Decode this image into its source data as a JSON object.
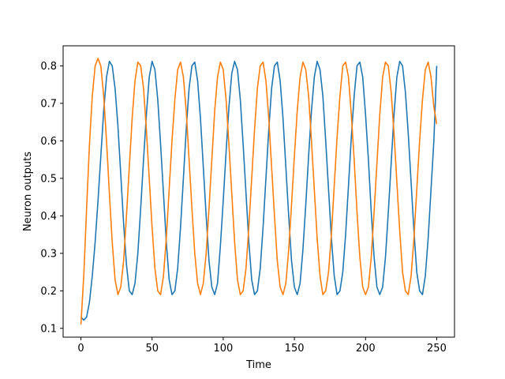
{
  "chart_data": {
    "type": "line",
    "title": "",
    "xlabel": "Time",
    "ylabel": "Neuron outputs",
    "xlim": [
      -12.5,
      262.5
    ],
    "ylim": [
      0.0765,
      0.8535
    ],
    "x_ticks": [
      0,
      50,
      100,
      150,
      200,
      250
    ],
    "y_ticks": [
      0.1,
      0.2,
      0.3,
      0.4,
      0.5,
      0.6,
      0.7,
      0.8
    ],
    "x_tick_labels": [
      "0",
      "50",
      "100",
      "150",
      "200",
      "250"
    ],
    "y_tick_labels": [
      "0.1",
      "0.2",
      "0.3",
      "0.4",
      "0.5",
      "0.6",
      "0.7",
      "0.8"
    ],
    "grid": false,
    "legend": "none",
    "series": [
      {
        "color": "#1f77b4",
        "x": [
          0,
          2,
          4,
          6,
          8,
          10,
          12,
          14,
          16,
          18,
          20,
          22,
          24,
          26,
          28,
          30,
          32,
          34,
          36,
          38,
          40,
          42,
          44,
          46,
          48,
          50,
          52,
          54,
          56,
          58,
          60,
          62,
          64,
          66,
          68,
          70,
          72,
          74,
          76,
          78,
          80,
          82,
          84,
          86,
          88,
          90,
          92,
          94,
          96,
          98,
          100,
          102,
          104,
          106,
          108,
          110,
          112,
          114,
          116,
          118,
          120,
          122,
          124,
          126,
          128,
          130,
          132,
          134,
          136,
          138,
          140,
          142,
          144,
          146,
          148,
          150,
          152,
          154,
          156,
          158,
          160,
          162,
          164,
          166,
          168,
          170,
          172,
          174,
          176,
          178,
          180,
          182,
          184,
          186,
          188,
          190,
          192,
          194,
          196,
          198,
          200,
          202,
          204,
          206,
          208,
          210,
          212,
          214,
          216,
          218,
          220,
          222,
          224,
          226,
          228,
          230,
          232,
          234,
          236,
          238,
          240,
          242,
          244,
          246,
          248,
          250
        ],
        "y": [
          0.13,
          0.122,
          0.13,
          0.17,
          0.24,
          0.33,
          0.44,
          0.56,
          0.68,
          0.77,
          0.812,
          0.8,
          0.74,
          0.64,
          0.51,
          0.38,
          0.27,
          0.2,
          0.19,
          0.22,
          0.3,
          0.42,
          0.55,
          0.67,
          0.77,
          0.812,
          0.79,
          0.71,
          0.59,
          0.46,
          0.33,
          0.23,
          0.19,
          0.2,
          0.26,
          0.37,
          0.5,
          0.63,
          0.74,
          0.8,
          0.81,
          0.76,
          0.66,
          0.53,
          0.4,
          0.28,
          0.21,
          0.19,
          0.22,
          0.32,
          0.44,
          0.57,
          0.69,
          0.78,
          0.812,
          0.79,
          0.71,
          0.59,
          0.46,
          0.33,
          0.23,
          0.19,
          0.2,
          0.26,
          0.37,
          0.5,
          0.63,
          0.74,
          0.8,
          0.81,
          0.76,
          0.66,
          0.53,
          0.4,
          0.28,
          0.21,
          0.19,
          0.22,
          0.31,
          0.43,
          0.56,
          0.68,
          0.77,
          0.812,
          0.79,
          0.72,
          0.6,
          0.47,
          0.34,
          0.24,
          0.19,
          0.2,
          0.25,
          0.35,
          0.48,
          0.61,
          0.72,
          0.8,
          0.81,
          0.77,
          0.67,
          0.55,
          0.41,
          0.29,
          0.21,
          0.19,
          0.21,
          0.29,
          0.41,
          0.54,
          0.67,
          0.77,
          0.812,
          0.8,
          0.73,
          0.62,
          0.49,
          0.36,
          0.25,
          0.2,
          0.19,
          0.24,
          0.34,
          0.47,
          0.6,
          0.8
        ]
      },
      {
        "color": "#ff7f0e",
        "x": [
          0,
          2,
          4,
          6,
          8,
          10,
          12,
          14,
          16,
          18,
          20,
          22,
          24,
          26,
          28,
          30,
          32,
          34,
          36,
          38,
          40,
          42,
          44,
          46,
          48,
          50,
          52,
          54,
          56,
          58,
          60,
          62,
          64,
          66,
          68,
          70,
          72,
          74,
          76,
          78,
          80,
          82,
          84,
          86,
          88,
          90,
          92,
          94,
          96,
          98,
          100,
          102,
          104,
          106,
          108,
          110,
          112,
          114,
          116,
          118,
          120,
          122,
          124,
          126,
          128,
          130,
          132,
          134,
          136,
          138,
          140,
          142,
          144,
          146,
          148,
          150,
          152,
          154,
          156,
          158,
          160,
          162,
          164,
          166,
          168,
          170,
          172,
          174,
          176,
          178,
          180,
          182,
          184,
          186,
          188,
          190,
          192,
          194,
          196,
          198,
          200,
          202,
          204,
          206,
          208,
          210,
          212,
          214,
          216,
          218,
          220,
          222,
          224,
          226,
          228,
          230,
          232,
          234,
          236,
          238,
          240,
          242,
          244,
          246,
          248,
          250
        ],
        "y": [
          0.11,
          0.24,
          0.42,
          0.59,
          0.72,
          0.8,
          0.82,
          0.8,
          0.72,
          0.6,
          0.46,
          0.33,
          0.23,
          0.19,
          0.21,
          0.28,
          0.4,
          0.53,
          0.66,
          0.76,
          0.81,
          0.8,
          0.74,
          0.63,
          0.5,
          0.37,
          0.26,
          0.2,
          0.19,
          0.24,
          0.34,
          0.47,
          0.6,
          0.71,
          0.79,
          0.81,
          0.77,
          0.68,
          0.55,
          0.42,
          0.3,
          0.22,
          0.19,
          0.22,
          0.3,
          0.42,
          0.55,
          0.68,
          0.77,
          0.81,
          0.79,
          0.71,
          0.59,
          0.46,
          0.33,
          0.23,
          0.19,
          0.2,
          0.26,
          0.37,
          0.5,
          0.63,
          0.74,
          0.8,
          0.81,
          0.76,
          0.66,
          0.53,
          0.4,
          0.28,
          0.21,
          0.19,
          0.22,
          0.31,
          0.43,
          0.56,
          0.68,
          0.77,
          0.81,
          0.79,
          0.72,
          0.6,
          0.47,
          0.34,
          0.24,
          0.19,
          0.2,
          0.25,
          0.35,
          0.48,
          0.61,
          0.72,
          0.8,
          0.81,
          0.77,
          0.67,
          0.55,
          0.41,
          0.29,
          0.21,
          0.19,
          0.21,
          0.29,
          0.41,
          0.54,
          0.67,
          0.77,
          0.81,
          0.8,
          0.73,
          0.62,
          0.49,
          0.36,
          0.25,
          0.2,
          0.19,
          0.24,
          0.34,
          0.47,
          0.6,
          0.71,
          0.79,
          0.81,
          0.77,
          0.69,
          0.645
        ]
      }
    ]
  }
}
